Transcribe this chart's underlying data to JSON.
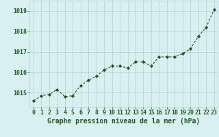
{
  "x": [
    0,
    1,
    2,
    3,
    4,
    5,
    6,
    7,
    8,
    9,
    10,
    11,
    12,
    13,
    14,
    15,
    16,
    17,
    18,
    19,
    20,
    21,
    22,
    23
  ],
  "y": [
    1014.6,
    1014.85,
    1014.9,
    1015.15,
    1014.8,
    1014.85,
    1015.35,
    1015.6,
    1015.8,
    1016.1,
    1016.3,
    1016.3,
    1016.2,
    1016.5,
    1016.5,
    1016.3,
    1016.75,
    1016.75,
    1016.75,
    1016.9,
    1017.15,
    1017.75,
    1018.2,
    1019.05
  ],
  "line_color": "#1a5c1a",
  "marker_style": "D",
  "marker_size": 2.2,
  "bg_color": "#d8f0f0",
  "grid_color": "#b0cece",
  "ylabel_ticks": [
    1015,
    1016,
    1017,
    1018,
    1019
  ],
  "ylim": [
    1014.3,
    1019.5
  ],
  "xlim": [
    -0.5,
    23.5
  ],
  "xlabel": "Graphe pression niveau de la mer (hPa)",
  "xlabel_color": "#1a5c1a",
  "tick_color": "#1a5c1a",
  "axis_label_fontsize": 7.0,
  "tick_fontsize": 6.0
}
